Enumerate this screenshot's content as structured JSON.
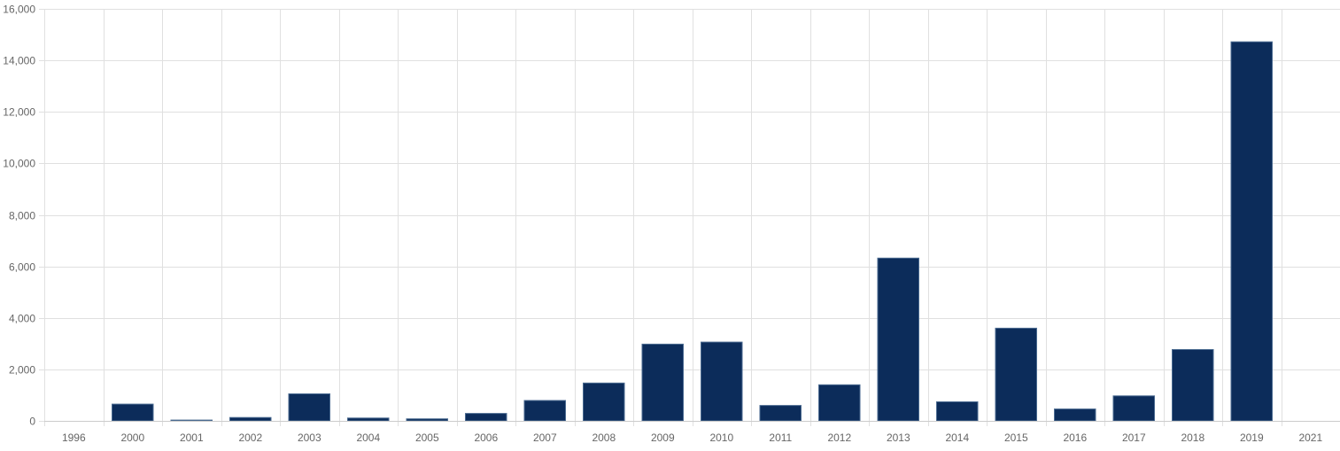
{
  "chart_data": {
    "type": "bar",
    "title": "",
    "xlabel": "",
    "ylabel": "",
    "categories": [
      "1996",
      "2000",
      "2001",
      "2002",
      "2003",
      "2004",
      "2005",
      "2006",
      "2007",
      "2008",
      "2009",
      "2010",
      "2011",
      "2012",
      "2013",
      "2014",
      "2015",
      "2016",
      "2017",
      "2018",
      "2019",
      "2021"
    ],
    "series": [
      {
        "values": [
          0,
          650,
          30,
          130,
          1050,
          110,
          80,
          290,
          790,
          1470,
          2980,
          3060,
          600,
          1400,
          6320,
          740,
          3600,
          460,
          970,
          2770,
          14720,
          0
        ]
      }
    ],
    "ylim": [
      0,
      16000
    ],
    "yticks": [
      0,
      2000,
      4000,
      6000,
      8000,
      10000,
      12000,
      14000,
      16000
    ],
    "ytick_labels": [
      "0",
      "2,000",
      "4,000",
      "6,000",
      "8,000",
      "10,000",
      "12,000",
      "14,000",
      "16,000"
    ],
    "grid": true,
    "legend": "none",
    "colors": {
      "bar": "#0c2c5a",
      "bar_border": "#4a6a90",
      "grid": "#e0e0e0",
      "axis": "#cccccc",
      "text": "#666666"
    }
  }
}
